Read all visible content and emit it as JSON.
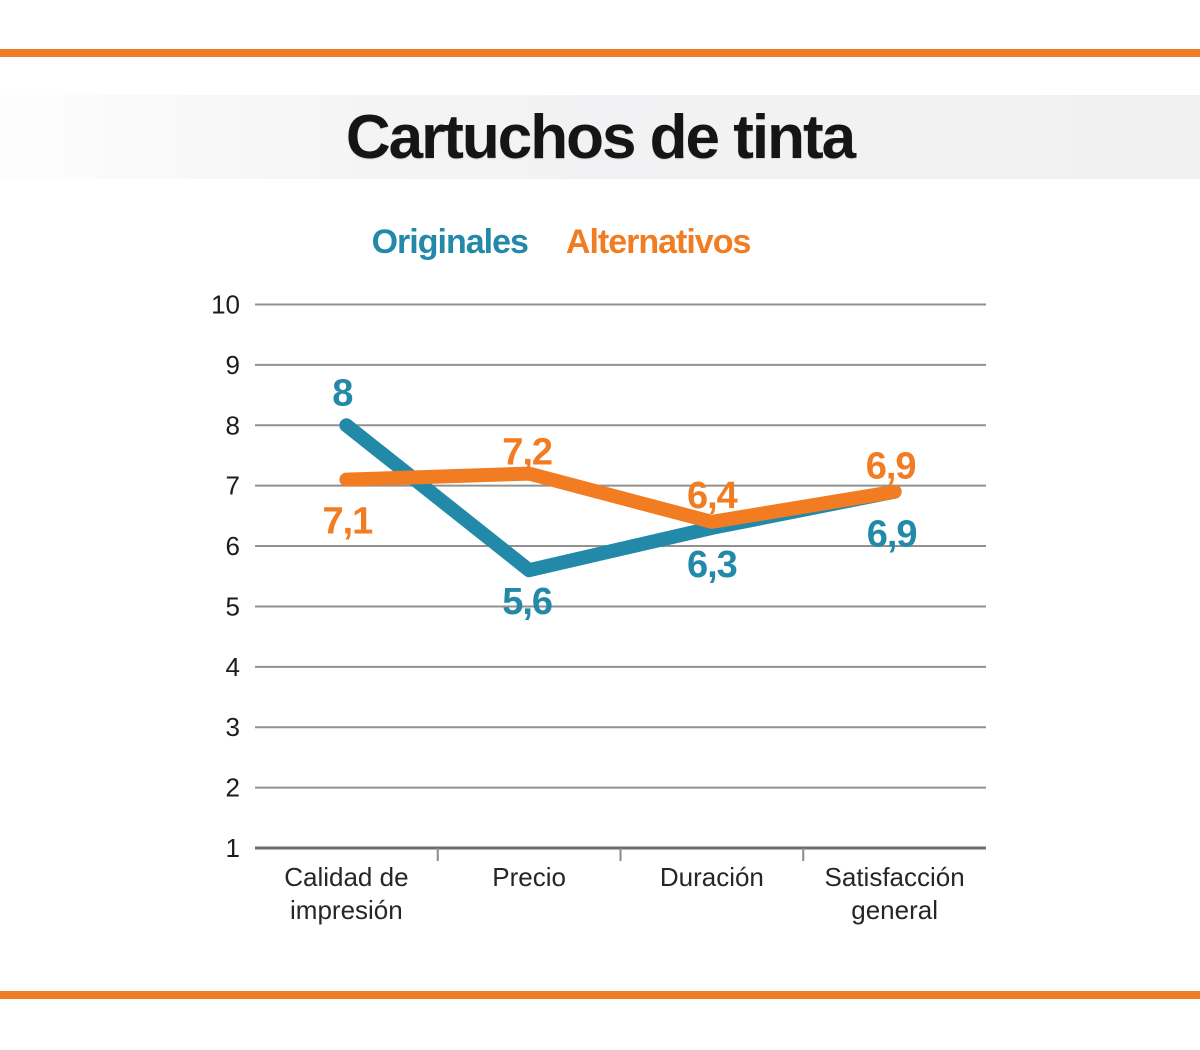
{
  "header": {
    "title": "Cartuchos de tinta"
  },
  "accent": {
    "bar_color": "#EE7D25"
  },
  "chart_data": {
    "type": "line",
    "title": "Cartuchos de tinta",
    "categories": [
      "Calidad de impresión",
      "Precio",
      "Duración",
      "Satisfacción general"
    ],
    "category_label_lines": [
      [
        "Calidad de",
        "impresión"
      ],
      [
        "Precio"
      ],
      [
        "Duración"
      ],
      [
        "Satisfacción",
        "general"
      ]
    ],
    "xlabel": "",
    "ylabel": "",
    "ylim": [
      1,
      10
    ],
    "y_ticks": [
      1,
      2,
      3,
      4,
      5,
      6,
      7,
      8,
      9,
      10
    ],
    "grid": true,
    "legend_position": "top",
    "series": [
      {
        "name": "Originales",
        "color": "#2289A9",
        "values": [
          8,
          5.6,
          6.3,
          6.9
        ],
        "labels": [
          "8",
          "5,6",
          "6,3",
          "6,9"
        ],
        "label_offsets": [
          [
            -4,
            -32
          ],
          [
            -2,
            32
          ],
          [
            0,
            37
          ],
          [
            -3,
            43
          ]
        ]
      },
      {
        "name": "Alternativos",
        "color": "#F27C21",
        "values": [
          7.1,
          7.2,
          6.4,
          6.9
        ],
        "labels": [
          "7,1",
          "7,2",
          "6,4",
          "6,9"
        ],
        "label_offsets": [
          [
            1,
            42
          ],
          [
            -2,
            -21
          ],
          [
            0,
            -26
          ],
          [
            -4,
            -25
          ]
        ]
      }
    ]
  }
}
